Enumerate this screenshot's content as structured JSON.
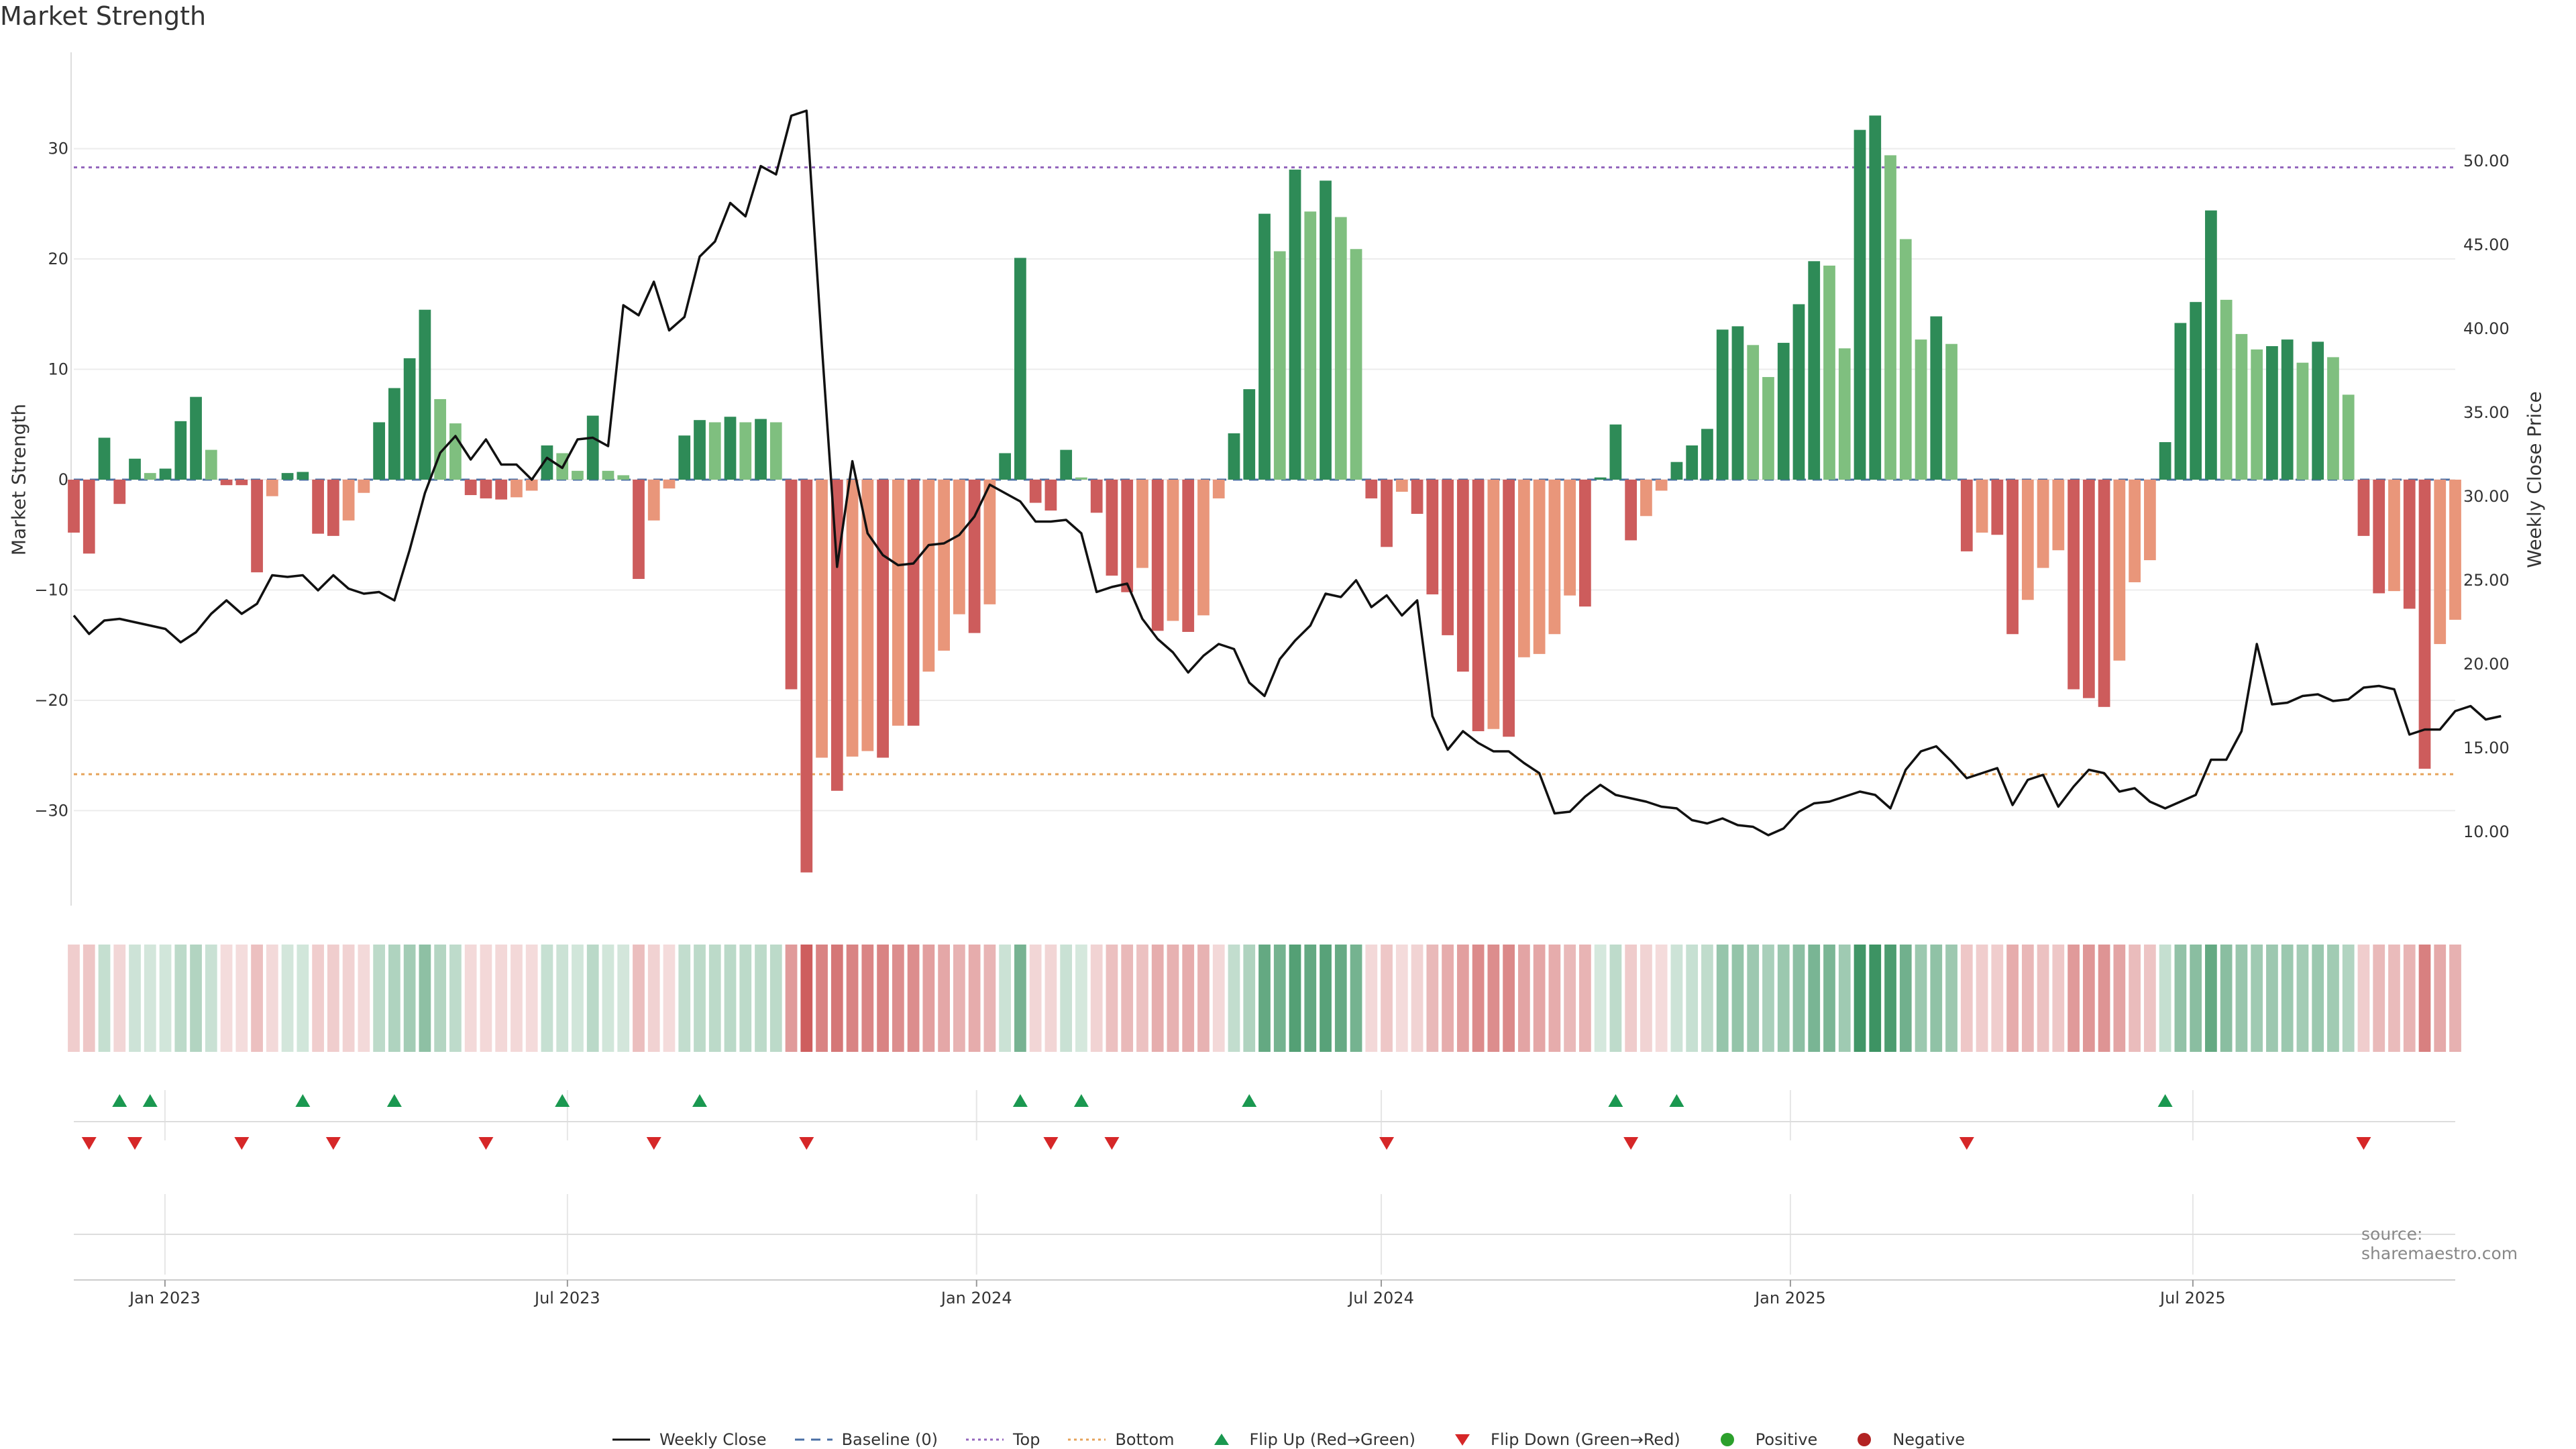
{
  "title": "Market Strength",
  "source": "source: sharemaestro.com",
  "colors": {
    "pos_strong": "#2e8b57",
    "pos_weak": "#7fbf7f",
    "neg_strong": "#cd5c5c",
    "neg_weak": "#e9967a",
    "price_line": "#111111",
    "top_line": "#9467bd",
    "bottom_line": "#e6a35a",
    "baseline": "#4a6fa5",
    "flip_up": "#1a9850",
    "flip_down": "#d62728",
    "positive_dot": "#2ca02c",
    "negative_dot": "#b22222"
  },
  "chart_data": {
    "type": "bar",
    "ylabel": "Market Strength",
    "y2label": "Weekly Close Price",
    "ylim": [
      -38,
      38
    ],
    "y_ticks": [
      -30,
      -20,
      -10,
      0,
      10,
      20,
      30
    ],
    "y_tick_labels": [
      "−30",
      "−20",
      "−10",
      "0",
      "10",
      "20",
      "30"
    ],
    "y2lim": [
      6,
      56
    ],
    "y2_ticks": [
      10,
      15,
      20,
      25,
      30,
      35,
      40,
      45,
      50
    ],
    "y2_tick_labels": [
      "10.00",
      "15.00",
      "20.00",
      "25.00",
      "30.00",
      "35.00",
      "40.00",
      "45.00",
      "50.00"
    ],
    "x_start": "2022-11-21",
    "x_end": "2025-10-27",
    "x_ticks": [
      "2023-01-01",
      "2023-07-01",
      "2024-01-01",
      "2024-07-01",
      "2025-01-01",
      "2025-07-01"
    ],
    "x_tick_labels": [
      "Jan 2023",
      "Jul 2023",
      "Jan 2024",
      "Jul 2024",
      "Jan 2025",
      "Jul 2025"
    ],
    "top_level": 28.3,
    "bottom_level": -26.7,
    "grid": true,
    "strength": [
      -4.8,
      -6.7,
      3.8,
      -2.2,
      1.9,
      0.6,
      1.0,
      5.3,
      7.5,
      2.7,
      -0.5,
      -0.5,
      -8.4,
      -1.5,
      0.6,
      0.7,
      -4.9,
      -5.1,
      -3.7,
      -1.2,
      5.2,
      8.3,
      11.0,
      15.4,
      7.3,
      5.1,
      -1.4,
      -1.7,
      -1.8,
      -1.6,
      -1.0,
      3.1,
      2.4,
      0.8,
      5.8,
      0.8,
      0.4,
      -9.0,
      -3.7,
      -0.8,
      4.0,
      5.4,
      5.2,
      5.7,
      5.2,
      5.5,
      5.2,
      -19.0,
      -35.6,
      -25.2,
      -28.2,
      -25.1,
      -24.6,
      -25.2,
      -22.3,
      -22.3,
      -17.4,
      -15.5,
      -12.2,
      -13.9,
      -11.3,
      2.4,
      20.1,
      -2.1,
      -2.8,
      2.7,
      0.2,
      -3.0,
      -8.7,
      -10.2,
      -8.0,
      -13.7,
      -12.8,
      -13.8,
      -12.3,
      -1.7,
      4.2,
      8.2,
      24.1,
      20.7,
      28.1,
      24.3,
      27.1,
      23.8,
      20.9,
      -1.7,
      -6.1,
      -1.1,
      -3.1,
      -10.4,
      -14.1,
      -17.4,
      -22.8,
      -22.6,
      -23.3,
      -16.1,
      -15.8,
      -14.0,
      -10.5,
      -11.5,
      0.2,
      5.0,
      -5.5,
      -3.3,
      -1.0,
      1.6,
      3.1,
      4.6,
      13.6,
      13.9,
      12.2,
      9.3,
      12.4,
      15.9,
      19.8,
      19.4,
      11.9,
      31.7,
      33.0,
      29.4,
      21.8,
      12.7,
      14.8,
      12.3,
      -6.5,
      -4.8,
      -5.0,
      -14.0,
      -10.9,
      -8.0,
      -6.4,
      -19.0,
      -19.8,
      -20.6,
      -16.4,
      -9.3,
      -7.3,
      3.4,
      14.2,
      16.1,
      24.4,
      16.3,
      13.2,
      11.8,
      12.1,
      12.7,
      10.6,
      12.5,
      11.1,
      7.7,
      -5.1,
      -10.3,
      -10.1,
      -11.7,
      -26.2,
      -14.9,
      -12.7
    ],
    "weekly_close": [
      22.9,
      21.8,
      22.6,
      22.7,
      22.5,
      22.3,
      22.1,
      21.3,
      21.9,
      23.0,
      23.8,
      23.0,
      23.6,
      25.3,
      25.2,
      25.3,
      24.4,
      25.3,
      24.5,
      24.2,
      24.3,
      23.8,
      26.8,
      30.2,
      32.6,
      33.6,
      32.2,
      33.4,
      31.9,
      31.9,
      31.0,
      32.3,
      31.7,
      33.4,
      33.5,
      33.0,
      41.4,
      40.8,
      42.8,
      39.9,
      40.7,
      44.3,
      45.2,
      47.5,
      46.7,
      49.7,
      49.2,
      52.7,
      53.0,
      39.0,
      25.8,
      32.1,
      27.8,
      26.5,
      25.9,
      26.0,
      27.1,
      27.2,
      27.7,
      28.8,
      30.7,
      30.2,
      29.7,
      28.5,
      28.5,
      28.6,
      27.8,
      24.3,
      24.6,
      24.8,
      22.7,
      21.5,
      20.7,
      19.5,
      20.5,
      21.2,
      20.9,
      18.9,
      18.1,
      20.3,
      21.4,
      22.3,
      24.2,
      24.0,
      25.0,
      23.4,
      24.1,
      22.9,
      23.8,
      16.9,
      14.9,
      16.0,
      15.3,
      14.8,
      14.8,
      14.1,
      13.5,
      11.1,
      11.2,
      12.1,
      12.8,
      12.2,
      12.0,
      11.8,
      11.5,
      11.4,
      10.7,
      10.5,
      10.8,
      10.4,
      10.3,
      9.8,
      10.2,
      11.2,
      11.7,
      11.8,
      12.1,
      12.4,
      12.2,
      11.4,
      13.7,
      14.8,
      15.1,
      14.2,
      13.2,
      13.5,
      13.8,
      11.6,
      13.1,
      13.4,
      11.5,
      12.7,
      13.7,
      13.5,
      12.4,
      12.6,
      11.8,
      11.4,
      11.8,
      12.2,
      14.3,
      14.3,
      16.0,
      21.2,
      17.6,
      17.7,
      18.1,
      18.2,
      17.8,
      17.9,
      18.6,
      18.7,
      18.5,
      15.8,
      16.1,
      16.1,
      17.2,
      17.5,
      16.7,
      16.9
    ],
    "flip_up_index": [
      3,
      5,
      15,
      21,
      32,
      41,
      62,
      66,
      77,
      101,
      105,
      137
    ],
    "flip_down_index": [
      1,
      4,
      11,
      17,
      27,
      38,
      48,
      64,
      68,
      86,
      102,
      124,
      150
    ]
  },
  "legend": [
    {
      "label": "Weekly Close",
      "style": "line"
    },
    {
      "label": "Baseline (0)",
      "style": "dash"
    },
    {
      "label": "Top",
      "style": "dot-top"
    },
    {
      "label": "Bottom",
      "style": "dot-bottom"
    },
    {
      "label": "Flip Up (Red→Green)",
      "style": "tri-up"
    },
    {
      "label": "Flip Down (Green→Red)",
      "style": "tri-down"
    },
    {
      "label": "Positive",
      "style": "dot-pos"
    },
    {
      "label": "Negative",
      "style": "dot-neg"
    }
  ]
}
